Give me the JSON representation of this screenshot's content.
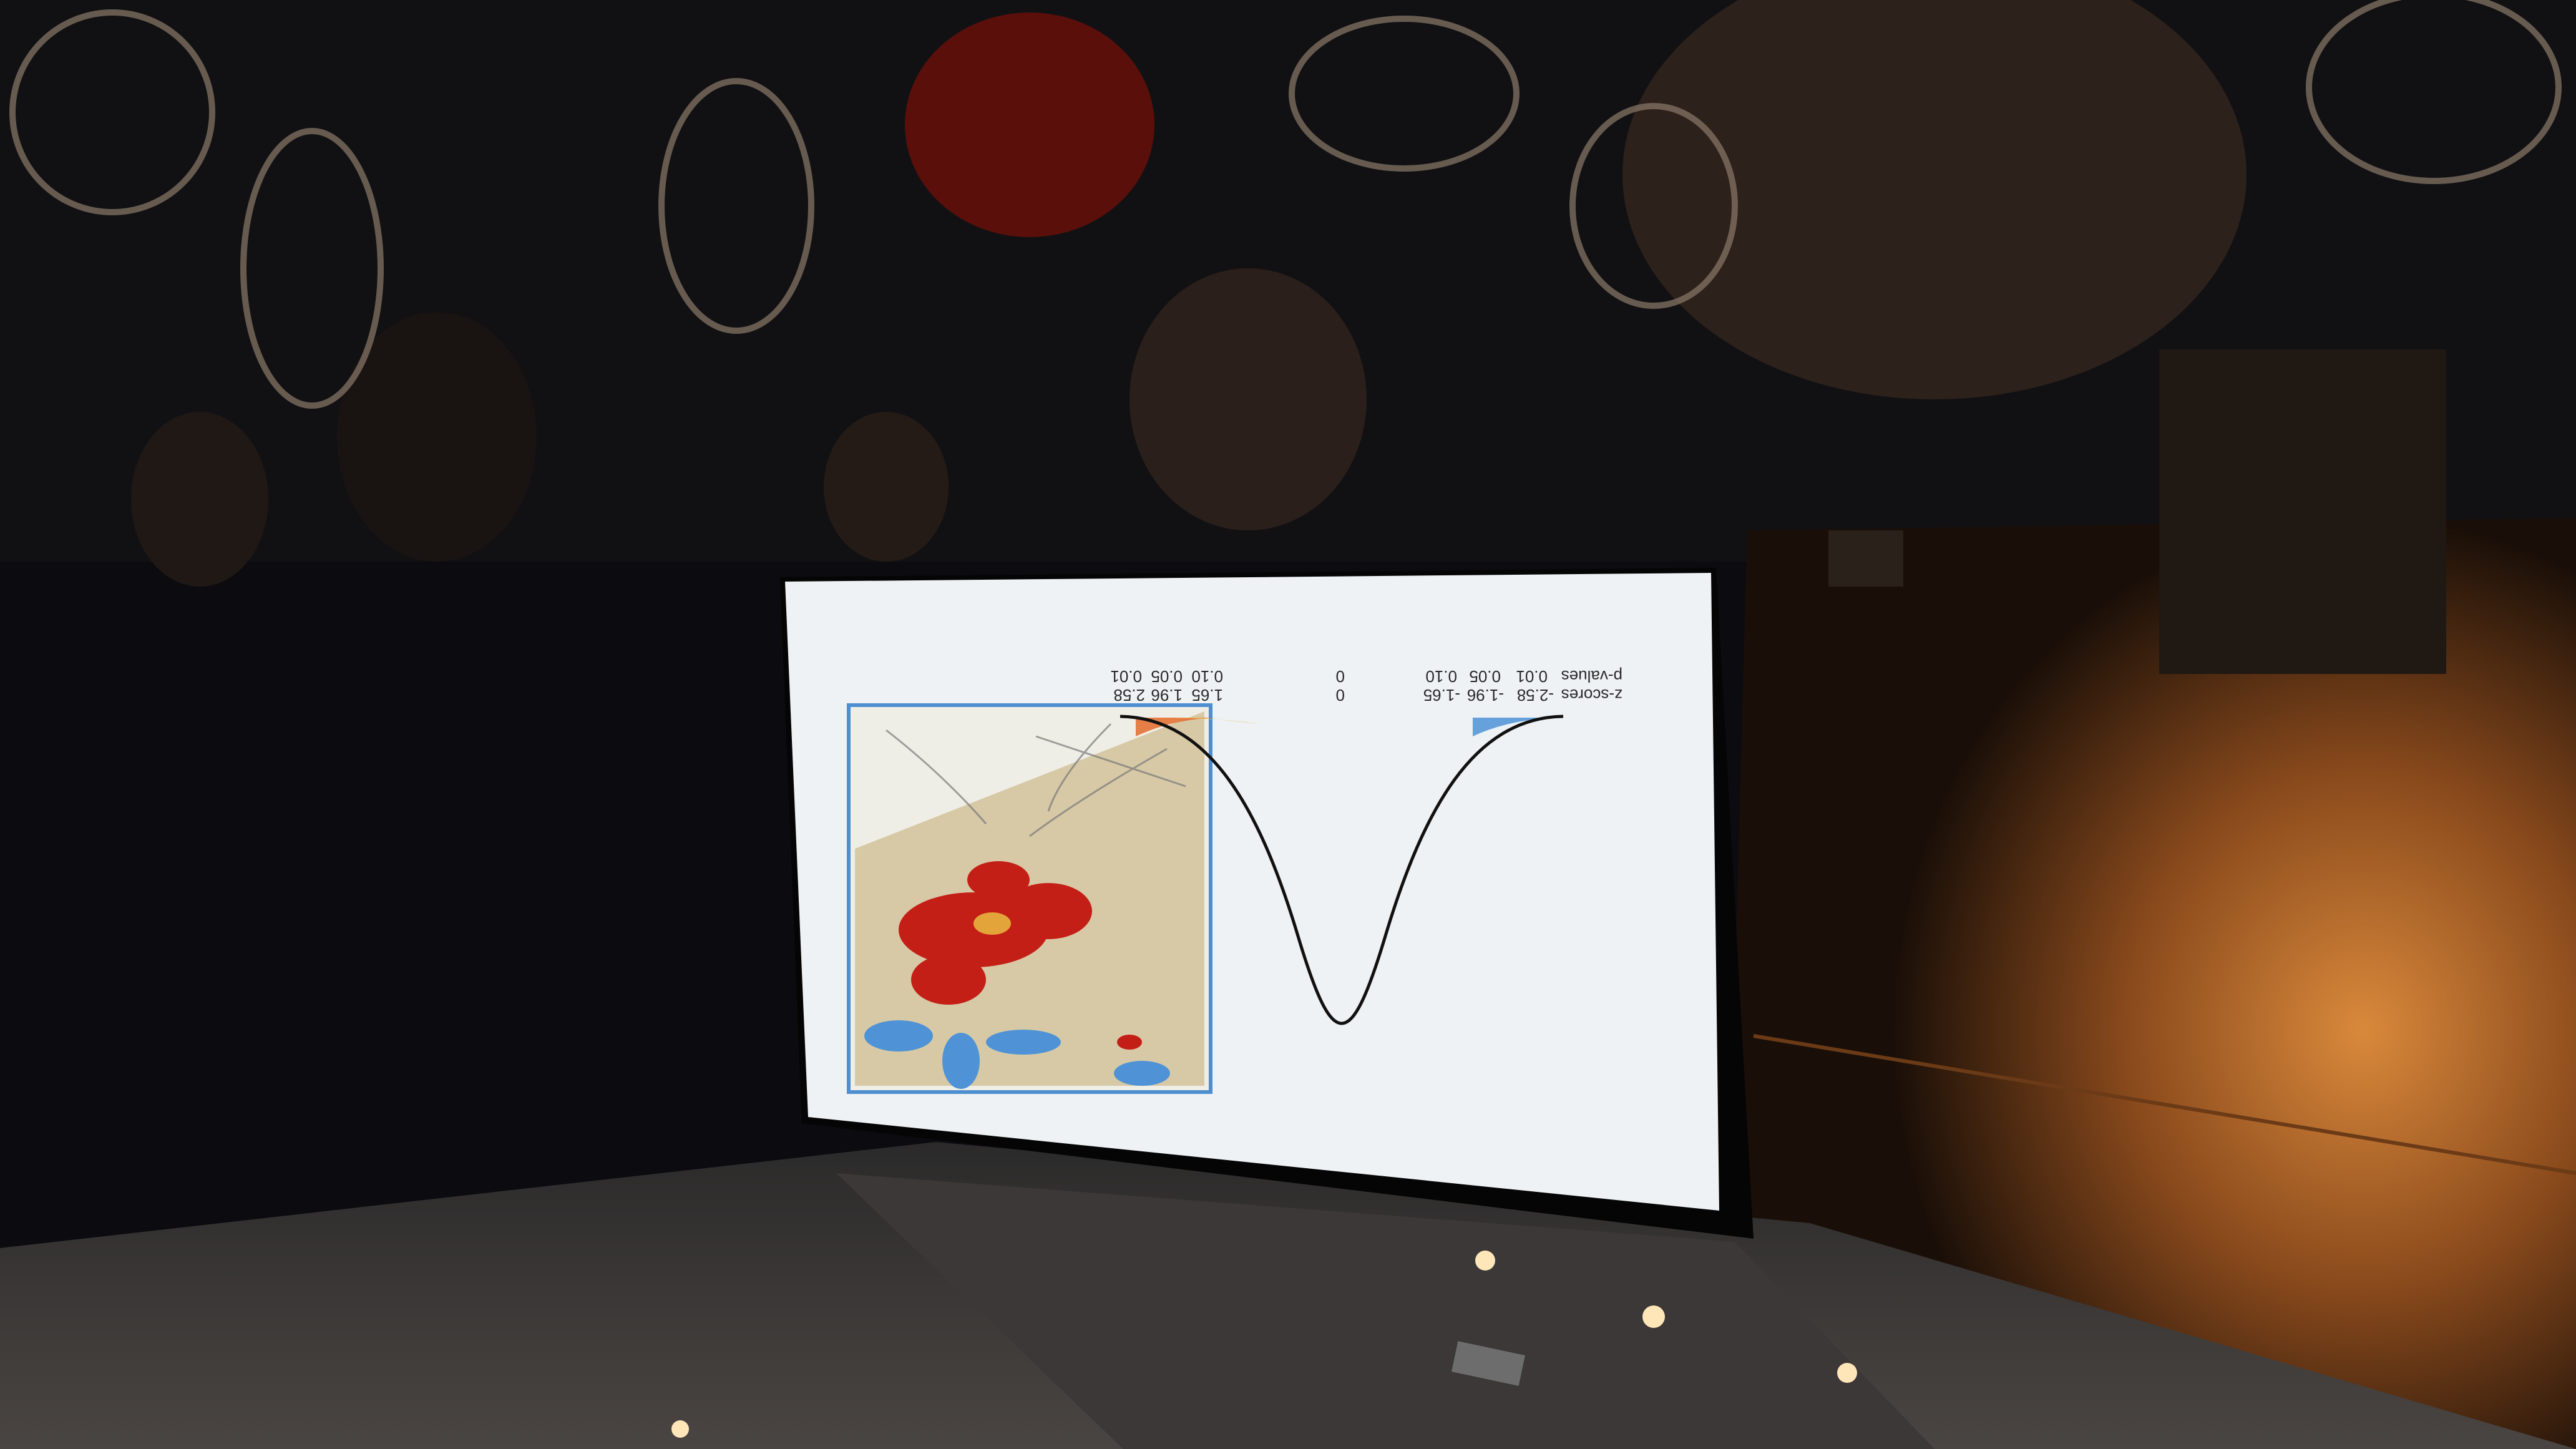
{
  "scene": {
    "description_free": true,
    "orientation": "upside-down",
    "colors": {
      "wall": "#0b0b10",
      "lit_wall": "#b86a2a",
      "screen": "#eef2f4",
      "map_hot": "#c41f16",
      "map_cold": "#4f93d6",
      "map_base": "#d7c9a6"
    }
  },
  "slide": {
    "row_z": {
      "label": "z-scores",
      "values": [
        "-2.58",
        "-1.96",
        "-1.65",
        "0",
        "1.65",
        "1.96",
        "2.58"
      ]
    },
    "row_p": {
      "label": "p-values",
      "values": [
        "0.01",
        "0.05",
        "0.10",
        "0",
        "0.10",
        "0.05",
        "0.01"
      ]
    }
  }
}
